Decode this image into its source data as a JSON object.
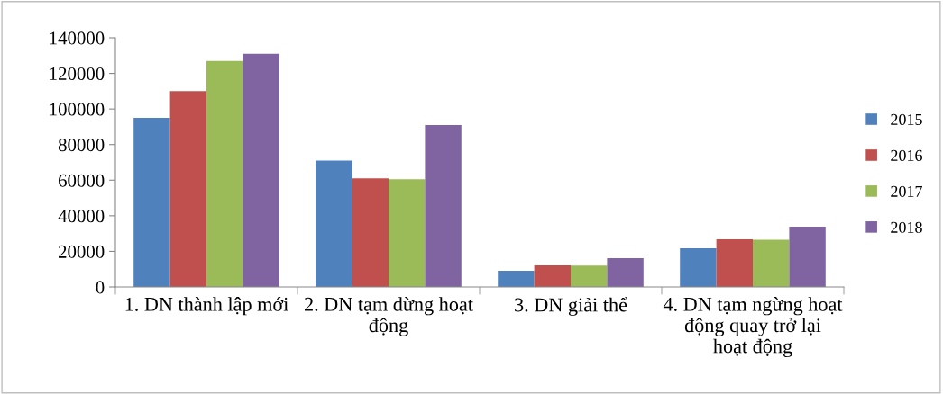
{
  "chart_data": {
    "type": "bar",
    "categories": [
      "1. DN thành lập mới",
      "2. DN tạm dừng hoạt động",
      "3. DN giải thể",
      "4. DN tạm ngừng hoạt động quay trở lại hoạt động"
    ],
    "series": [
      {
        "name": "2015",
        "color": "#4f81bd",
        "values": [
          95000,
          71000,
          9100,
          21700
        ]
      },
      {
        "name": "2016",
        "color": "#c0504d",
        "values": [
          110000,
          61000,
          12100,
          26800
        ]
      },
      {
        "name": "2017",
        "color": "#9bbb59",
        "values": [
          127000,
          60500,
          12000,
          26500
        ]
      },
      {
        "name": "2018",
        "color": "#8064a2",
        "values": [
          131000,
          91000,
          16200,
          33900
        ]
      }
    ],
    "ylim": [
      0,
      140000
    ],
    "yticks": [
      0,
      20000,
      40000,
      60000,
      80000,
      100000,
      120000,
      140000
    ],
    "grid": false,
    "legend": "right"
  }
}
